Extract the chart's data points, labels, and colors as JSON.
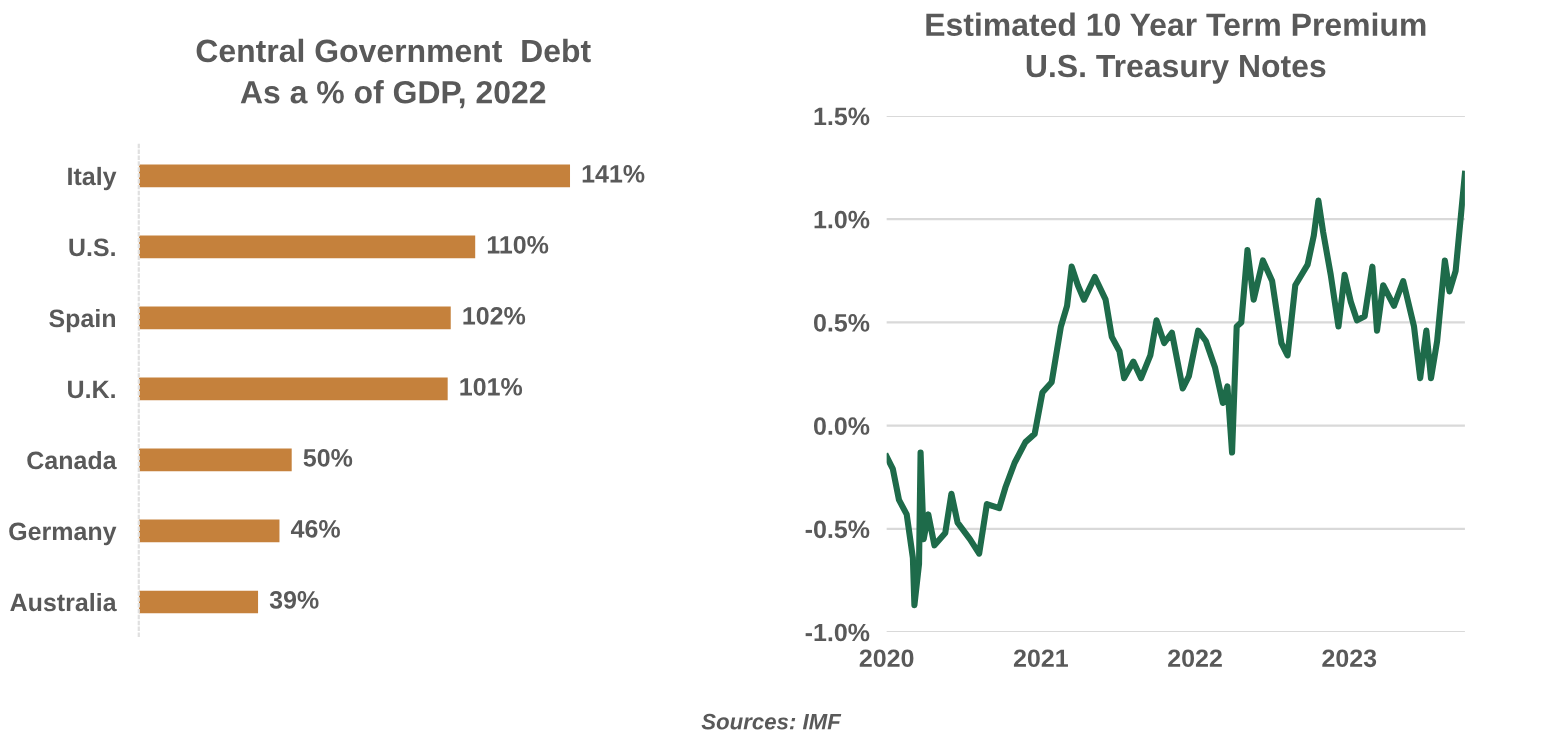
{
  "chart_data": [
    {
      "type": "bar",
      "orientation": "horizontal",
      "title": "Central Government  Debt\nAs a % of GDP, 2022",
      "categories": [
        "Italy",
        "U.S.",
        "Spain",
        "U.K.",
        "Canada",
        "Germany",
        "Australia"
      ],
      "values": [
        141,
        110,
        102,
        101,
        50,
        46,
        39
      ],
      "color": "#c5813c",
      "value_labels": [
        "141%",
        "110%",
        "102%",
        "101%",
        "50%",
        "46%",
        "39%"
      ],
      "tick_labels": "y",
      "annotations": [
        "Sources: IMF"
      ]
    },
    {
      "type": "line",
      "title": "Estimated 10 Year Term Premium\nU.S. Treasury Notes",
      "series": [
        {
          "color": "#1e6b4a",
          "x": [
            2020.0,
            2020.04,
            2020.08,
            2020.13,
            2020.17,
            2020.18,
            2020.21,
            2020.22,
            2020.24,
            2020.27,
            2020.31,
            2020.38,
            2020.42,
            2020.46,
            2020.54,
            2020.6,
            2020.65,
            2020.73,
            2020.77,
            2020.83,
            2020.9,
            2020.96,
            2021.01,
            2021.07,
            2021.13,
            2021.17,
            2021.2,
            2021.24,
            2021.28,
            2021.35,
            2021.42,
            2021.46,
            2021.51,
            2021.54,
            2021.6,
            2021.65,
            2021.71,
            2021.75,
            2021.8,
            2021.85,
            2021.92,
            2021.96,
            2022.02,
            2022.07,
            2022.13,
            2022.18,
            2022.21,
            2022.24,
            2022.27,
            2022.3,
            2022.34,
            2022.38,
            2022.44,
            2022.5,
            2022.56,
            2022.6,
            2022.65,
            2022.73,
            2022.77,
            2022.8,
            2022.83,
            2022.88,
            2022.93,
            2022.97,
            2023.01,
            2023.05,
            2023.1,
            2023.15,
            2023.18,
            2023.22,
            2023.29,
            2023.35,
            2023.42,
            2023.46,
            2023.5,
            2023.53,
            2023.57,
            2023.62,
            2023.65,
            2023.69,
            2023.75
          ],
          "values": [
            -0.15,
            -0.21,
            -0.36,
            -0.43,
            -0.64,
            -0.87,
            -0.67,
            -0.13,
            -0.55,
            -0.43,
            -0.58,
            -0.52,
            -0.33,
            -0.47,
            -0.55,
            -0.62,
            -0.38,
            -0.4,
            -0.3,
            -0.18,
            -0.08,
            -0.04,
            0.16,
            0.21,
            0.48,
            0.58,
            0.77,
            0.68,
            0.61,
            0.72,
            0.61,
            0.43,
            0.36,
            0.23,
            0.31,
            0.23,
            0.34,
            0.51,
            0.4,
            0.45,
            0.18,
            0.24,
            0.46,
            0.41,
            0.28,
            0.11,
            0.19,
            -0.13,
            0.48,
            0.5,
            0.85,
            0.61,
            0.8,
            0.7,
            0.4,
            0.34,
            0.68,
            0.78,
            0.92,
            1.09,
            0.94,
            0.73,
            0.48,
            0.73,
            0.6,
            0.51,
            0.53,
            0.77,
            0.46,
            0.68,
            0.58,
            0.7,
            0.48,
            0.23,
            0.46,
            0.23,
            0.41,
            0.8,
            0.65,
            0.75,
            1.22
          ]
        }
      ],
      "xlim": [
        2020,
        2023.75
      ],
      "xticks": [
        2020,
        2021,
        2022,
        2023
      ],
      "ylim": [
        -1.0,
        1.5
      ],
      "yticks": [
        {
          "value": -1.0,
          "label": "-1.0%"
        },
        {
          "value": -0.5,
          "label": "-0.5%"
        },
        {
          "value": 0.0,
          "label": "0.0%"
        },
        {
          "value": 0.5,
          "label": "0.5%"
        },
        {
          "value": 1.0,
          "label": "1.0%"
        },
        {
          "value": 1.5,
          "label": "1.5%"
        }
      ],
      "grid": "y",
      "marker": "none",
      "line_style": "solid"
    }
  ]
}
